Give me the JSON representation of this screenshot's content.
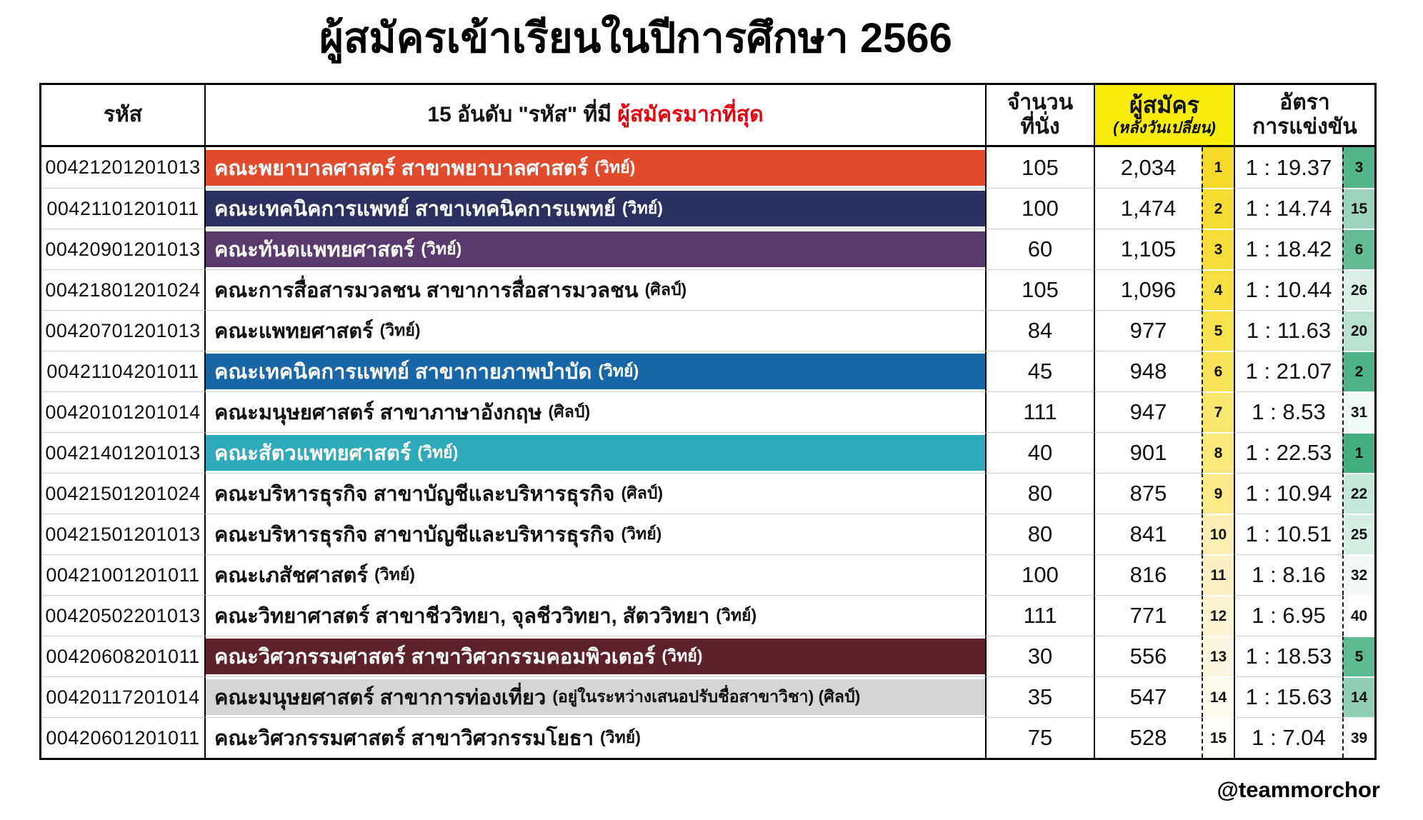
{
  "title": "ผู้สมัครเข้าเรียนในปีการศึกษา 2566",
  "watermark": "@teammorchor",
  "colors": {
    "header_highlight_bg": "#F8EC0C",
    "header_accent_text": "#E8000D",
    "border": "#000000"
  },
  "table": {
    "headers": {
      "code": "รหัส",
      "name_prefix": "15 อันดับ \"รหัส\" ที่มี ",
      "name_highlight": "ผู้สมัครมากที่สุด",
      "seats_line1": "จำนวน",
      "seats_line2": "ที่นั่ง",
      "applicants_main": "ผู้สมัคร",
      "applicants_sub": "(หลังวันเปลี่ยน)",
      "ratio_line1": "อัตรา",
      "ratio_line2": "การแข่งขัน"
    },
    "rows": [
      {
        "code": "00421201201013",
        "name": "คณะพยาบาลศาสตร์ สาขาพยาบาลศาสตร์",
        "note": "(วิทย์)",
        "seats": "105",
        "applicants": "2,034",
        "rank": "1",
        "ratio": "1 : 19.37",
        "ratio_rank": "3",
        "bar_bg": "#E24A2C",
        "bar_text": "#ffffff",
        "rank_bg": "#F6D92A",
        "ratio_rank_bg": "#53B58B"
      },
      {
        "code": "00421101201011",
        "name": "คณะเทคนิคการแพทย์ สาขาเทคนิคการแพทย์",
        "note": "(วิทย์)",
        "seats": "100",
        "applicants": "1,474",
        "rank": "2",
        "ratio": "1 : 14.74",
        "ratio_rank": "15",
        "bar_bg": "#2B3061",
        "bar_text": "#ffffff",
        "rank_bg": "#F6DB32",
        "ratio_rank_bg": "#9CD4BB"
      },
      {
        "code": "00420901201013",
        "name": "คณะทันตแพทยศาสตร์",
        "note": "(วิทย์)",
        "seats": "60",
        "applicants": "1,105",
        "rank": "3",
        "ratio": "1 : 18.42",
        "ratio_rank": "6",
        "bar_bg": "#583A6E",
        "bar_text": "#ffffff",
        "rank_bg": "#F6DD3A",
        "ratio_rank_bg": "#64BD96"
      },
      {
        "code": "00421801201024",
        "name": "คณะการสื่อสารมวลชน สาขาการสื่อสารมวลชน",
        "note": "(ศิลป์)",
        "seats": "105",
        "applicants": "1,096",
        "rank": "4",
        "ratio": "1 : 10.44",
        "ratio_rank": "26",
        "bar_bg": "",
        "bar_text": "#111111",
        "rank_bg": "#F7DF42",
        "ratio_rank_bg": "#DBF0E5"
      },
      {
        "code": "00420701201013",
        "name": "คณะแพทยศาสตร์",
        "note": "(วิทย์)",
        "seats": "84",
        "applicants": "977",
        "rank": "5",
        "ratio": "1 : 11.63",
        "ratio_rank": "20",
        "bar_bg": "",
        "bar_text": "#111111",
        "rank_bg": "#F7E14C",
        "ratio_rank_bg": "#BBE2D0"
      },
      {
        "code": "00421104201011",
        "name": "คณะเทคนิคการแพทย์ สาขากายภาพบำบัด",
        "note": "(วิทย์)",
        "seats": "45",
        "applicants": "948",
        "rank": "6",
        "ratio": "1 : 21.07",
        "ratio_rank": "2",
        "bar_bg": "#1766A8",
        "bar_text": "#ffffff",
        "rank_bg": "#F8E358",
        "ratio_rank_bg": "#4DB286"
      },
      {
        "code": "00420101201014",
        "name": "คณะมนุษยศาสตร์ สาขาภาษาอังกฤษ",
        "note": "(ศิลป์)",
        "seats": "111",
        "applicants": "947",
        "rank": "7",
        "ratio": "1 : 8.53",
        "ratio_rank": "31",
        "bar_bg": "",
        "bar_text": "#111111",
        "rank_bg": "#F9E66E",
        "ratio_rank_bg": "#F1FAF5"
      },
      {
        "code": "00421401201013",
        "name": "คณะสัตวแพทยศาสตร์",
        "note": "(วิทย์)",
        "seats": "40",
        "applicants": "901",
        "rank": "8",
        "ratio": "1 : 22.53",
        "ratio_rank": "1",
        "bar_bg": "#2FA9BC",
        "bar_text": "#ffffff",
        "rank_bg": "#F9E87A",
        "ratio_rank_bg": "#45AE80"
      },
      {
        "code": "00421501201024",
        "name": "คณะบริหารธุรกิจ สาขาบัญชีและบริหารธุรกิจ",
        "note": "(ศิลป์)",
        "seats": "80",
        "applicants": "875",
        "rank": "9",
        "ratio": "1 : 10.94",
        "ratio_rank": "22",
        "bar_bg": "",
        "bar_text": "#111111",
        "rank_bg": "#FAEA8A",
        "ratio_rank_bg": "#C7E7D8"
      },
      {
        "code": "00421501201013",
        "name": "คณะบริหารธุรกิจ สาขาบัญชีและบริหารธุรกิจ",
        "note": "(วิทย์)",
        "seats": "80",
        "applicants": "841",
        "rank": "10",
        "ratio": "1 : 10.51",
        "ratio_rank": "25",
        "bar_bg": "",
        "bar_text": "#111111",
        "rank_bg": "#FBEFB4",
        "ratio_rank_bg": "#D7EEE2"
      },
      {
        "code": "00421001201011",
        "name": "คณะเภสัชศาสตร์",
        "note": "(วิทย์)",
        "seats": "100",
        "applicants": "816",
        "rank": "11",
        "ratio": "1 : 8.16",
        "ratio_rank": "32",
        "bar_bg": "",
        "bar_text": "#111111",
        "rank_bg": "#FCF1C4",
        "ratio_rank_bg": "#F4FBF7"
      },
      {
        "code": "00420502201013",
        "name": "คณะวิทยาศาสตร์ สาขาชีววิทยา, จุลชีววิทยา, สัตววิทยา",
        "note": "(วิทย์)",
        "seats": "111",
        "applicants": "771",
        "rank": "12",
        "ratio": "1 : 6.95",
        "ratio_rank": "40",
        "bar_bg": "",
        "bar_text": "#111111",
        "rank_bg": "#FCF3D0",
        "ratio_rank_bg": "#FFFFFF"
      },
      {
        "code": "00420608201011",
        "name": "คณะวิศวกรรมศาสตร์ สาขาวิศวกรรมคอมพิวเตอร์",
        "note": "(วิทย์)",
        "seats": "30",
        "applicants": "556",
        "rank": "13",
        "ratio": "1 : 18.53",
        "ratio_rank": "5",
        "bar_bg": "#5E212B",
        "bar_text": "#ffffff",
        "rank_bg": "#FDF6DE",
        "ratio_rank_bg": "#5EBA92"
      },
      {
        "code": "00420117201014",
        "name": "คณะมนุษยศาสตร์ สาขาการท่องเที่ยว",
        "note": "(อยู่ในระหว่างเสนอปรับชื่อสาขาวิชา) (ศิลป์)",
        "seats": "35",
        "applicants": "547",
        "rank": "14",
        "ratio": "1 : 15.63",
        "ratio_rank": "14",
        "bar_bg": "#D5D5D5",
        "bar_text": "#111111",
        "rank_bg": "#FEFAEE",
        "ratio_rank_bg": "#90CFB3"
      },
      {
        "code": "00420601201011",
        "name": "คณะวิศวกรรมศาสตร์ สาขาวิศวกรรมโยธา",
        "note": "(วิทย์)",
        "seats": "75",
        "applicants": "528",
        "rank": "15",
        "ratio": "1 : 7.04",
        "ratio_rank": "39",
        "bar_bg": "",
        "bar_text": "#111111",
        "rank_bg": "#FFFEF9",
        "ratio_rank_bg": "#FDFEFD"
      }
    ]
  }
}
